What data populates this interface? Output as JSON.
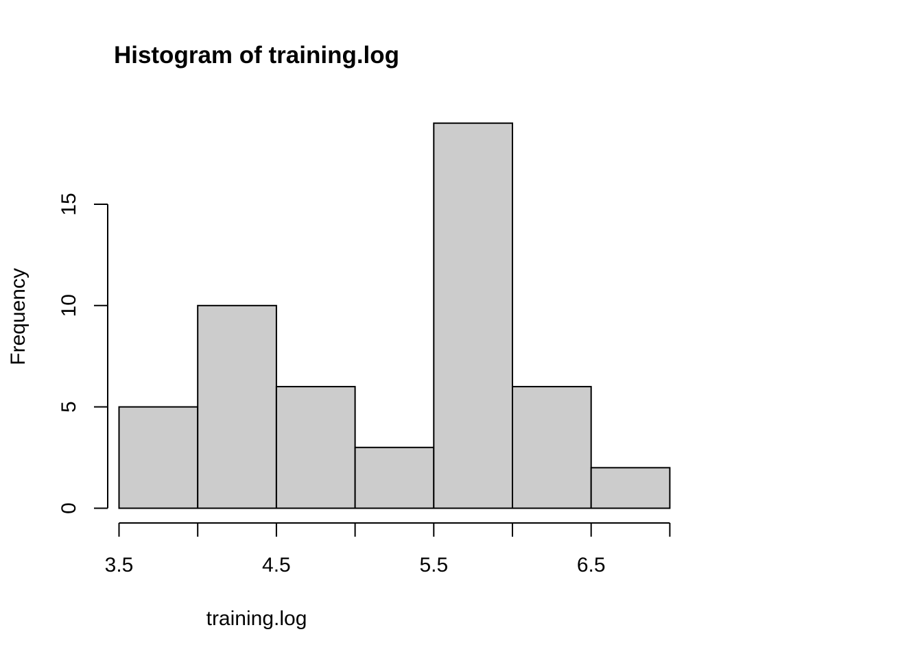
{
  "chart_data": {
    "type": "bar",
    "title": "Histogram of training.log",
    "xlabel": "training.log",
    "ylabel": "Frequency",
    "bins": [
      {
        "from": 3.5,
        "to": 4.0,
        "count": 5
      },
      {
        "from": 4.0,
        "to": 4.5,
        "count": 10
      },
      {
        "from": 4.5,
        "to": 5.0,
        "count": 6
      },
      {
        "from": 5.0,
        "to": 5.5,
        "count": 3
      },
      {
        "from": 5.5,
        "to": 6.0,
        "count": 19
      },
      {
        "from": 6.0,
        "to": 6.5,
        "count": 6
      },
      {
        "from": 6.5,
        "to": 7.0,
        "count": 2
      }
    ],
    "xlim": [
      3.5,
      7.0
    ],
    "ylim": [
      0,
      19
    ],
    "x_ticks": [
      3.5,
      4.0,
      4.5,
      5.0,
      5.5,
      6.0,
      6.5,
      7.0
    ],
    "x_tick_labels": [
      "3.5",
      "4.5",
      "5.5",
      "6.5"
    ],
    "x_labeled_ticks": [
      3.5,
      4.5,
      5.5,
      6.5
    ],
    "y_ticks": [
      0,
      5,
      10,
      15
    ],
    "y_tick_labels": [
      "0",
      "5",
      "10",
      "15"
    ],
    "bar_fill": "#cccccc",
    "bar_stroke": "#000000",
    "grid": false,
    "legend": "none"
  }
}
